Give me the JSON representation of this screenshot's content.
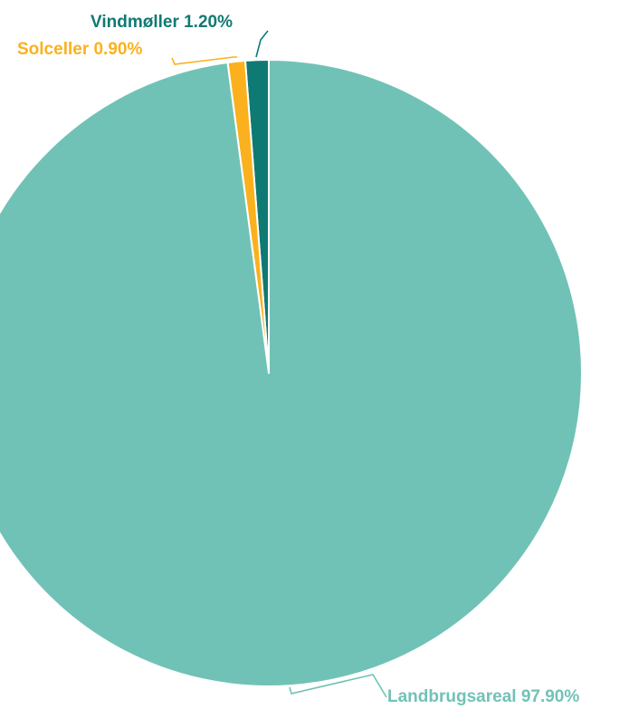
{
  "chart_data": {
    "type": "pie",
    "title": "",
    "slices": [
      {
        "label": "Vindmøller",
        "value": 1.2,
        "display": "1.20%",
        "color": "#0f7a73"
      },
      {
        "label": "Solceller",
        "value": 0.9,
        "display": "0.90%",
        "color": "#fbb11d"
      },
      {
        "label": "Landbrugsareal",
        "value": 97.9,
        "display": "97.90%",
        "color": "#71c2b6"
      }
    ],
    "legend": "none",
    "start_angle_deg": 0,
    "direction": "counterclockwise"
  }
}
